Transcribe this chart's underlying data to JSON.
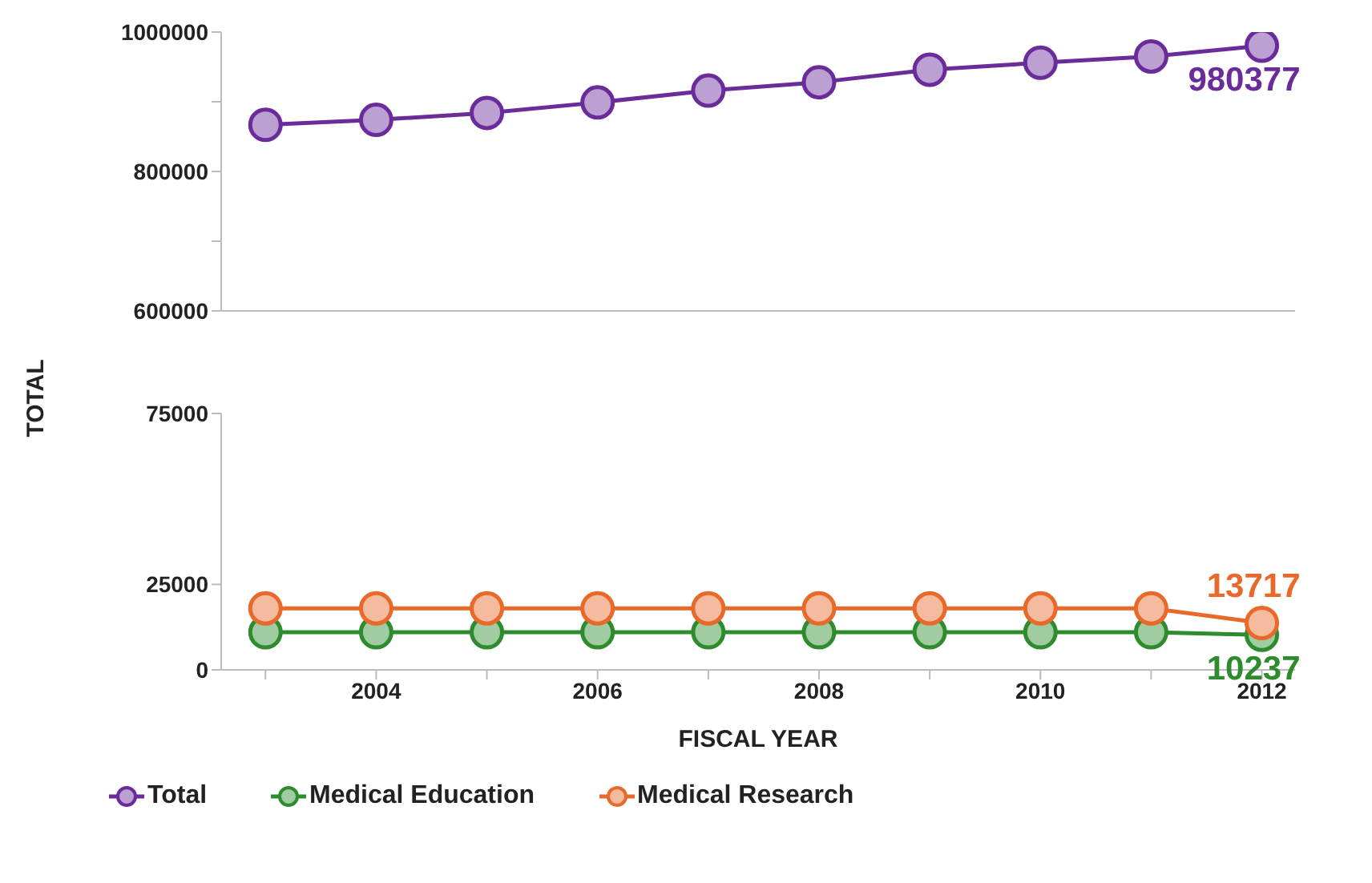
{
  "chart_data": [
    {
      "type": "line",
      "ylabel": "TOTAL",
      "x": [
        2003,
        2004,
        2005,
        2006,
        2007,
        2008,
        2009,
        2010,
        2011,
        2012
      ],
      "xlim": [
        2002.6,
        2012.3
      ],
      "ylim": [
        600000,
        1000000
      ],
      "yticks": [
        600000,
        {
          "value": 700000,
          "label": null
        },
        800000,
        {
          "value": 900000,
          "label": null
        },
        1000000
      ],
      "tick_labels": "y",
      "series": [
        {
          "name": "Total",
          "color": "#6a2c9a",
          "values": [
            867000,
            874000,
            884000,
            899000,
            916000,
            928000,
            946000,
            956000,
            965000,
            980377
          ],
          "value_labels": [
            null,
            null,
            null,
            null,
            null,
            null,
            null,
            null,
            null,
            "980377"
          ]
        }
      ],
      "marker": "circle",
      "line_style": "solid"
    },
    {
      "type": "line",
      "xlabel": "FISCAL YEAR",
      "x": [
        2003,
        2004,
        2005,
        2006,
        2007,
        2008,
        2009,
        2010,
        2011,
        2012
      ],
      "xlim": [
        2002.6,
        2012.3
      ],
      "xticks": [
        {
          "value": 2003,
          "label": null
        },
        2004,
        {
          "value": 2005,
          "label": null
        },
        2006,
        {
          "value": 2007,
          "label": null
        },
        2008,
        {
          "value": 2009,
          "label": null
        },
        2010,
        {
          "value": 2011,
          "label": null
        },
        2012
      ],
      "ylim": [
        0,
        75000
      ],
      "yticks": [
        0,
        25000,
        75000
      ],
      "series": [
        {
          "name": "Medical Education",
          "color": "#2e8b2e",
          "values": [
            11000,
            11000,
            11000,
            11000,
            11000,
            11000,
            11000,
            11000,
            11000,
            10237
          ],
          "value_labels": [
            null,
            null,
            null,
            null,
            null,
            null,
            null,
            null,
            null,
            "10237"
          ]
        },
        {
          "name": "Medical Research",
          "color": "#e8692a",
          "values": [
            18000,
            18000,
            18000,
            18000,
            18000,
            18000,
            18000,
            18000,
            18000,
            13717
          ],
          "value_labels": [
            null,
            null,
            null,
            null,
            null,
            null,
            null,
            null,
            null,
            "13717"
          ]
        }
      ],
      "marker": "circle",
      "line_style": "solid",
      "legend": "bottom left"
    }
  ]
}
